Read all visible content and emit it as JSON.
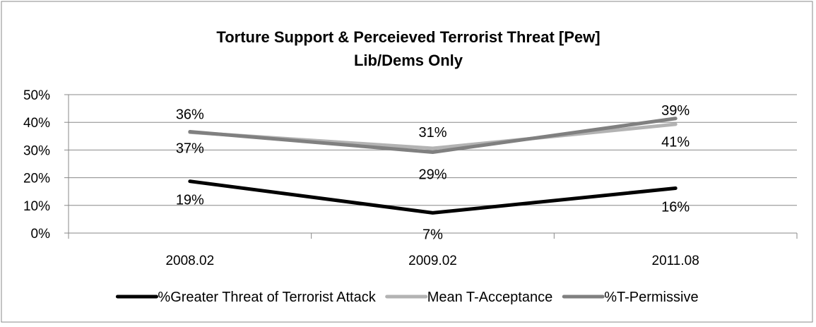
{
  "chart_data": {
    "type": "line",
    "title": "Torture Support & Perceieved Terrorist Threat [Pew]",
    "subtitle": "Lib/Dems Only",
    "categories": [
      "2008.02",
      "2009.02",
      "2011.08"
    ],
    "ylim": [
      0,
      0.5
    ],
    "yticks": [
      0,
      0.1,
      0.2,
      0.3,
      0.4,
      0.5
    ],
    "ytick_labels": [
      "0%",
      "10%",
      "20%",
      "30%",
      "40%",
      "50%"
    ],
    "grid": true,
    "legend_position": "bottom",
    "series": [
      {
        "name": "%Greater Threat of Terrorist Attack",
        "values": [
          0.187,
          0.073,
          0.162
        ],
        "labels": [
          "19%",
          "7%",
          "16%"
        ],
        "color": "#000000"
      },
      {
        "name": "Mean T-Acceptance",
        "values": [
          0.364,
          0.306,
          0.393
        ],
        "labels": [
          "36%",
          "31%",
          "39%"
        ],
        "color": "#b3b3b3"
      },
      {
        "name": "%T-Permissive",
        "values": [
          0.366,
          0.292,
          0.414
        ],
        "labels": [
          "37%",
          "29%",
          "41%"
        ],
        "color": "#808080"
      }
    ]
  }
}
